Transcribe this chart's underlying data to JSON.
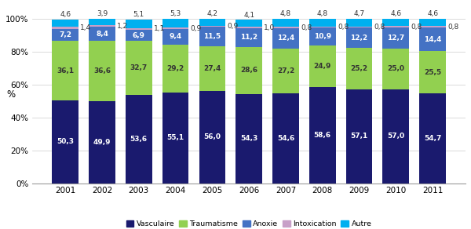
{
  "years": [
    "2001",
    "2002",
    "2003",
    "2004",
    "2005",
    "2006",
    "2007",
    "2008",
    "2009",
    "2010",
    "2011"
  ],
  "vasculaire": [
    50.3,
    49.9,
    53.6,
    55.1,
    56.0,
    54.3,
    54.6,
    58.6,
    57.1,
    57.0,
    54.7
  ],
  "traumatisme": [
    36.1,
    36.6,
    32.7,
    29.2,
    27.4,
    28.6,
    27.2,
    24.9,
    25.2,
    25.0,
    25.5
  ],
  "anoxie": [
    7.2,
    8.4,
    6.9,
    9.4,
    11.5,
    11.2,
    12.4,
    10.9,
    12.2,
    12.7,
    14.4
  ],
  "intoxication": [
    1.4,
    1.2,
    1.1,
    0.9,
    0.9,
    1.0,
    0.8,
    0.8,
    0.8,
    0.8,
    0.8
  ],
  "autre": [
    4.6,
    3.9,
    5.1,
    5.3,
    4.2,
    4.1,
    4.8,
    4.8,
    4.7,
    4.6,
    4.6
  ],
  "colors": {
    "vasculaire": "#1a1a6e",
    "traumatisme": "#92d050",
    "anoxie": "#4472c4",
    "intoxication": "#c8a0c8",
    "autre": "#00b0f0"
  },
  "ylabel": "%",
  "ylim": [
    0,
    105
  ],
  "yticks": [
    0,
    20,
    40,
    60,
    80,
    100
  ],
  "ytick_labels": [
    "0%",
    "20%",
    "40%",
    "60%",
    "80%",
    "100%"
  ],
  "legend_labels": [
    "Vasculaire",
    "Traumatisme",
    "Anoxie",
    "Intoxication",
    "Autre"
  ],
  "label_fontsize": 6.5,
  "bar_width": 0.72
}
